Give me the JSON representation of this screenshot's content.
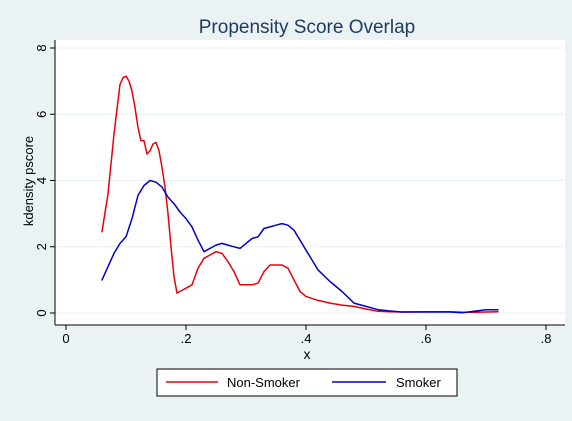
{
  "chart_data": {
    "type": "line",
    "title": "Propensity Score Overlap",
    "xlabel": "x",
    "ylabel": "kdensity pscore",
    "xlim": [
      0,
      0.8
    ],
    "ylim": [
      0,
      8
    ],
    "x_ticks": [
      0,
      0.2,
      0.4,
      0.6,
      0.8
    ],
    "x_tick_labels": [
      "0",
      ".2",
      ".4",
      ".6",
      ".8"
    ],
    "y_ticks": [
      0,
      2,
      4,
      6,
      8
    ],
    "y_tick_labels": [
      "0",
      "2",
      "4",
      "6",
      "8"
    ],
    "grid": true,
    "legend_position": "bottom",
    "series": [
      {
        "name": "Non-Smoker",
        "color": "#e8000b",
        "x": [
          0.06,
          0.07,
          0.08,
          0.09,
          0.095,
          0.1,
          0.105,
          0.11,
          0.115,
          0.12,
          0.125,
          0.13,
          0.135,
          0.14,
          0.145,
          0.15,
          0.155,
          0.16,
          0.165,
          0.17,
          0.175,
          0.18,
          0.185,
          0.19,
          0.2,
          0.21,
          0.22,
          0.23,
          0.24,
          0.25,
          0.26,
          0.27,
          0.28,
          0.29,
          0.3,
          0.31,
          0.32,
          0.33,
          0.34,
          0.35,
          0.36,
          0.37,
          0.38,
          0.39,
          0.4,
          0.42,
          0.44,
          0.46,
          0.48,
          0.5,
          0.52,
          0.54,
          0.56,
          0.6,
          0.64,
          0.66,
          0.68,
          0.7,
          0.72
        ],
        "values": [
          2.45,
          3.6,
          5.4,
          6.9,
          7.1,
          7.15,
          7.0,
          6.7,
          6.2,
          5.6,
          5.2,
          5.2,
          4.8,
          4.9,
          5.1,
          5.15,
          4.9,
          4.4,
          3.8,
          3.0,
          2.0,
          1.1,
          0.6,
          0.65,
          0.75,
          0.85,
          1.35,
          1.65,
          1.75,
          1.85,
          1.8,
          1.55,
          1.25,
          0.85,
          0.85,
          0.85,
          0.9,
          1.25,
          1.45,
          1.45,
          1.45,
          1.35,
          1.0,
          0.65,
          0.5,
          0.38,
          0.3,
          0.24,
          0.2,
          0.12,
          0.05,
          0.04,
          0.03,
          0.04,
          0.04,
          0.02,
          0.02,
          0.03,
          0.04
        ]
      },
      {
        "name": "Smoker",
        "color": "#0000cd",
        "x": [
          0.06,
          0.07,
          0.08,
          0.09,
          0.1,
          0.11,
          0.12,
          0.13,
          0.14,
          0.15,
          0.16,
          0.17,
          0.18,
          0.19,
          0.2,
          0.21,
          0.22,
          0.23,
          0.24,
          0.25,
          0.26,
          0.27,
          0.28,
          0.29,
          0.3,
          0.31,
          0.32,
          0.33,
          0.34,
          0.35,
          0.36,
          0.37,
          0.38,
          0.39,
          0.4,
          0.42,
          0.44,
          0.46,
          0.48,
          0.5,
          0.52,
          0.54,
          0.56,
          0.6,
          0.64,
          0.66,
          0.68,
          0.7,
          0.72
        ],
        "values": [
          1.0,
          1.4,
          1.8,
          2.1,
          2.3,
          2.85,
          3.55,
          3.85,
          4.0,
          3.95,
          3.8,
          3.5,
          3.3,
          3.05,
          2.85,
          2.6,
          2.2,
          1.85,
          1.95,
          2.05,
          2.1,
          2.05,
          2.0,
          1.95,
          2.1,
          2.25,
          2.3,
          2.55,
          2.6,
          2.65,
          2.7,
          2.65,
          2.5,
          2.2,
          1.9,
          1.3,
          0.95,
          0.65,
          0.3,
          0.2,
          0.1,
          0.06,
          0.03,
          0.03,
          0.03,
          0.01,
          0.05,
          0.1,
          0.1
        ]
      }
    ]
  }
}
